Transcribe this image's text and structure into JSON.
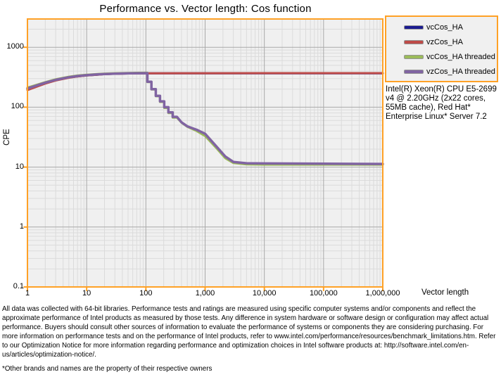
{
  "chart_data": {
    "type": "line",
    "title": "Performance vs. Vector length: Cos function",
    "xlabel": "Vector length",
    "ylabel": "CPE",
    "x_scale": "log",
    "y_scale": "log",
    "xlim": [
      1,
      1000000
    ],
    "ylim": [
      0.1,
      2960
    ],
    "grid": "on",
    "legend_position": "top-right-outside",
    "x_ticks": {
      "values": [
        1,
        10,
        100,
        1000,
        10000,
        100000,
        1000000
      ],
      "labels": [
        "1",
        "10",
        "100",
        "1,000",
        "10,000",
        "100,000",
        "1,000,000"
      ]
    },
    "y_ticks": {
      "values": [
        0.1,
        1,
        10,
        100,
        1000
      ],
      "labels": [
        "0.1",
        "1",
        "10",
        "100",
        "1000"
      ]
    },
    "colors": {
      "axis_border": "#FFA126",
      "plot_background": "#F0F0F0",
      "major_grid": "#A9A9A9",
      "minor_grid": "#DBDBDB"
    },
    "series": [
      {
        "name": "vcCos_HA",
        "color": "#1C1C8F",
        "width": 3,
        "points": [
          [
            1,
            200
          ],
          [
            2,
            252
          ],
          [
            3,
            282
          ],
          [
            5,
            312
          ],
          [
            7,
            327
          ],
          [
            10,
            339
          ],
          [
            15,
            349
          ],
          [
            20,
            356
          ],
          [
            30,
            361
          ],
          [
            50,
            365
          ],
          [
            70,
            367
          ],
          [
            100,
            368
          ],
          [
            1000,
            368
          ],
          [
            100000,
            368
          ],
          [
            1000000,
            368
          ]
        ]
      },
      {
        "name": "vzCos_HA",
        "color": "#BE4B48",
        "width": 3,
        "points": [
          [
            1,
            193
          ],
          [
            2,
            248
          ],
          [
            3,
            279
          ],
          [
            5,
            310
          ],
          [
            7,
            326
          ],
          [
            10,
            338
          ],
          [
            15,
            349
          ],
          [
            20,
            356
          ],
          [
            30,
            361
          ],
          [
            50,
            365
          ],
          [
            70,
            367
          ],
          [
            100,
            368
          ],
          [
            1000,
            369
          ],
          [
            10000,
            370
          ],
          [
            100000,
            370
          ],
          [
            1000000,
            370
          ]
        ]
      },
      {
        "name": "vcCos_HA threaded",
        "color": "#9BBB59",
        "width": 3,
        "points": [
          [
            1,
            212
          ],
          [
            2,
            262
          ],
          [
            3,
            292
          ],
          [
            5,
            322
          ],
          [
            7,
            337
          ],
          [
            10,
            348
          ],
          [
            15,
            358
          ],
          [
            20,
            364
          ],
          [
            30,
            369
          ],
          [
            50,
            373
          ],
          [
            70,
            375
          ],
          [
            100,
            376
          ],
          [
            106,
            376
          ],
          [
            106,
            262
          ],
          [
            124,
            262
          ],
          [
            124,
            197
          ],
          [
            147,
            197
          ],
          [
            147,
            152
          ],
          [
            173,
            152
          ],
          [
            173,
            122
          ],
          [
            204,
            122
          ],
          [
            204,
            97
          ],
          [
            240,
            97
          ],
          [
            240,
            80
          ],
          [
            283,
            80
          ],
          [
            283,
            67
          ],
          [
            334,
            67
          ],
          [
            400,
            55
          ],
          [
            500,
            47
          ],
          [
            720,
            40
          ],
          [
            1000,
            33
          ],
          [
            1500,
            21.5
          ],
          [
            2200,
            14
          ],
          [
            3000,
            11.7
          ],
          [
            5000,
            11.1
          ],
          [
            10000,
            11.0
          ],
          [
            100000,
            11.0
          ],
          [
            1000000,
            11.0
          ]
        ]
      },
      {
        "name": "vzCos_HA threaded",
        "color": "#8064A2",
        "width": 3.5,
        "points": [
          [
            1,
            205
          ],
          [
            2,
            256
          ],
          [
            3,
            286
          ],
          [
            5,
            316
          ],
          [
            7,
            331
          ],
          [
            10,
            342
          ],
          [
            15,
            352
          ],
          [
            20,
            358
          ],
          [
            30,
            363
          ],
          [
            50,
            367
          ],
          [
            70,
            369
          ],
          [
            100,
            370
          ],
          [
            106,
            370
          ],
          [
            106,
            265
          ],
          [
            124,
            265
          ],
          [
            124,
            200
          ],
          [
            147,
            200
          ],
          [
            147,
            155
          ],
          [
            173,
            155
          ],
          [
            173,
            125
          ],
          [
            204,
            125
          ],
          [
            204,
            100
          ],
          [
            240,
            100
          ],
          [
            240,
            82
          ],
          [
            283,
            82
          ],
          [
            283,
            69
          ],
          [
            334,
            69
          ],
          [
            400,
            56
          ],
          [
            500,
            48
          ],
          [
            720,
            42
          ],
          [
            1000,
            36
          ],
          [
            1500,
            23
          ],
          [
            2200,
            15
          ],
          [
            3000,
            12.2
          ],
          [
            5000,
            11.6
          ],
          [
            10000,
            11.5
          ],
          [
            100000,
            11.4
          ],
          [
            1000000,
            11.3
          ]
        ]
      }
    ]
  },
  "legend": {
    "items": [
      {
        "label": "vcCos_HA",
        "color": "#1C1C8F"
      },
      {
        "label": "vzCos_HA",
        "color": "#BE4B48"
      },
      {
        "label": "vcCos_HA threaded",
        "color": "#9BBB59"
      },
      {
        "label": "vzCos_HA threaded",
        "color": "#8064A2"
      }
    ]
  },
  "side_note": "Intel(R) Xeon(R) CPU E5-2699 v4 @ 2.20GHz (2x22 cores, 55MB cache), Red Hat* Enterprise Linux* Server 7.2",
  "footer": {
    "disclaimer": "All data was collected with 64-bit libraries. Performance tests and ratings are measured using specific computer systems and/or components and reflect the approximate performance of Intel products as measured by those tests. Any difference in system hardware or software design or configuration may affect actual performance. Buyers should consult other sources of information to evaluate the performance of systems or components they are considering purchasing. For more information on performance tests and on the performance of Intel products, refer to www.intel.com/performance/resources/benchmark_limitations.htm. Refer to our Optimization Notice for more information regarding performance and optimization choices in Intel software products at: http://software.intel.com/en-us/articles/optimization-notice/.",
    "footnote": "*Other brands and names are the property of their respective owners"
  }
}
